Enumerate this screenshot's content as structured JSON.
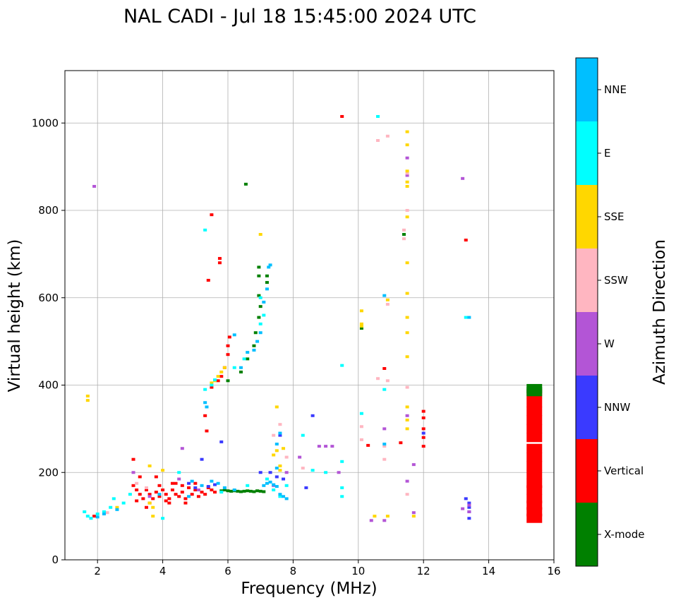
{
  "colors": {
    "X-mode": "#008000",
    "Vertical": "#ff0000",
    "NNW": "#3a3aff",
    "W": "#b355d6",
    "SSW": "#ffb6c1",
    "SSE": "#ffd700",
    "E": "#00ffff",
    "NNE": "#00bfff"
  },
  "chart_data": {
    "type": "scatter",
    "title": "NAL CADI - Jul 18 15:45:00 2024 UTC",
    "xlabel": "Frequency (MHz)",
    "ylabel": "Virtual height (km)",
    "xlim": [
      1,
      16
    ],
    "ylim": [
      0,
      1120
    ],
    "xticks": [
      2,
      4,
      6,
      8,
      10,
      12,
      14,
      16
    ],
    "xtick_labels": [
      "2",
      "4",
      "6",
      "8",
      "10",
      "12",
      "14",
      "16"
    ],
    "yticks": [
      0,
      200,
      400,
      600,
      800,
      1000
    ],
    "ytick_labels": [
      "0",
      "200",
      "400",
      "600",
      "800",
      "1000"
    ],
    "grid": true,
    "colorbar": {
      "label": "Azimuth Direction",
      "categories": [
        "X-mode",
        "Vertical",
        "NNW",
        "W",
        "SSW",
        "SSE",
        "E",
        "NNE"
      ]
    },
    "series": [
      {
        "name": "Vertical",
        "points": [
          [
            3.1,
            170
          ],
          [
            3.2,
            160
          ],
          [
            3.3,
            150
          ],
          [
            3.4,
            140
          ],
          [
            3.5,
            160
          ],
          [
            3.6,
            150
          ],
          [
            3.7,
            140
          ],
          [
            3.8,
            155
          ],
          [
            3.9,
            145
          ],
          [
            4.0,
            160
          ],
          [
            4.1,
            150
          ],
          [
            4.2,
            140
          ],
          [
            4.3,
            160
          ],
          [
            4.4,
            150
          ],
          [
            4.5,
            145
          ],
          [
            4.6,
            155
          ],
          [
            4.7,
            140
          ],
          [
            4.8,
            165
          ],
          [
            4.9,
            150
          ],
          [
            5.0,
            160
          ],
          [
            5.1,
            145
          ],
          [
            5.2,
            155
          ],
          [
            5.3,
            150
          ],
          [
            5.4,
            165
          ],
          [
            5.5,
            160
          ],
          [
            5.6,
            155
          ],
          [
            3.2,
            135
          ],
          [
            3.6,
            130
          ],
          [
            4.2,
            130
          ],
          [
            4.4,
            175
          ],
          [
            4.7,
            130
          ],
          [
            5.0,
            175
          ],
          [
            3.1,
            230
          ],
          [
            3.3,
            190
          ],
          [
            3.9,
            170
          ],
          [
            4.3,
            175
          ],
          [
            4.1,
            135
          ],
          [
            4.6,
            170
          ],
          [
            3.5,
            120
          ],
          [
            3.8,
            190
          ],
          [
            5.5,
            395
          ],
          [
            5.7,
            410
          ],
          [
            5.8,
            420
          ],
          [
            5.9,
            440
          ],
          [
            6.0,
            470
          ],
          [
            6.0,
            490
          ],
          [
            6.05,
            510
          ],
          [
            5.3,
            330
          ],
          [
            5.35,
            295
          ],
          [
            5.5,
            790
          ],
          [
            5.4,
            640
          ],
          [
            5.75,
            690
          ],
          [
            5.75,
            680
          ],
          [
            1.9,
            100
          ],
          [
            11.3,
            268
          ],
          [
            12.0,
            340
          ],
          [
            12.0,
            325
          ],
          [
            12.0,
            300
          ],
          [
            12.0,
            280
          ],
          [
            12.0,
            260
          ],
          [
            10.3,
            262
          ],
          [
            10.8,
            438
          ],
          [
            13.3,
            732
          ],
          [
            9.5,
            1015
          ]
        ]
      },
      {
        "name": "X-mode",
        "points": [
          [
            5.8,
            158
          ],
          [
            5.9,
            160
          ],
          [
            6.0,
            158
          ],
          [
            6.1,
            157
          ],
          [
            6.2,
            158
          ],
          [
            6.3,
            157
          ],
          [
            6.4,
            156
          ],
          [
            6.5,
            157
          ],
          [
            6.6,
            158
          ],
          [
            6.7,
            157
          ],
          [
            6.8,
            156
          ],
          [
            6.9,
            158
          ],
          [
            7.0,
            157
          ],
          [
            7.1,
            156
          ],
          [
            6.4,
            430
          ],
          [
            6.6,
            460
          ],
          [
            6.8,
            490
          ],
          [
            6.85,
            520
          ],
          [
            6.95,
            555
          ],
          [
            7.0,
            580
          ],
          [
            6.95,
            605
          ],
          [
            7.2,
            650
          ],
          [
            7.2,
            635
          ],
          [
            6.95,
            670
          ],
          [
            6.95,
            650
          ],
          [
            6.55,
            860
          ],
          [
            10.1,
            530
          ],
          [
            6.0,
            410
          ],
          [
            11.4,
            745
          ]
        ]
      },
      {
        "name": "NNW",
        "points": [
          [
            4.8,
            175
          ],
          [
            5.0,
            165
          ],
          [
            5.4,
            168
          ],
          [
            5.6,
            172
          ],
          [
            5.2,
            230
          ],
          [
            5.8,
            270
          ],
          [
            7.0,
            200
          ],
          [
            7.3,
            200
          ],
          [
            7.5,
            190
          ],
          [
            7.7,
            185
          ],
          [
            7.6,
            285
          ],
          [
            8.4,
            165
          ],
          [
            8.6,
            330
          ],
          [
            13.3,
            140
          ],
          [
            13.4,
            130
          ],
          [
            13.4,
            120
          ],
          [
            13.4,
            110
          ],
          [
            13.4,
            95
          ],
          [
            12.0,
            290
          ]
        ]
      },
      {
        "name": "W",
        "points": [
          [
            4.6,
            255
          ],
          [
            5.1,
            160
          ],
          [
            3.6,
            145
          ],
          [
            4.5,
            185
          ],
          [
            8.8,
            260
          ],
          [
            9.0,
            260
          ],
          [
            9.2,
            260
          ],
          [
            10.4,
            90
          ],
          [
            10.8,
            90
          ],
          [
            10.8,
            300
          ],
          [
            11.5,
            880
          ],
          [
            11.5,
            920
          ],
          [
            11.5,
            330
          ],
          [
            11.5,
            180
          ],
          [
            11.7,
            218
          ],
          [
            11.7,
            108
          ],
          [
            13.2,
            117
          ],
          [
            13.4,
            110
          ],
          [
            13.4,
            125
          ],
          [
            1.9,
            855
          ],
          [
            13.2,
            873
          ],
          [
            8.2,
            235
          ],
          [
            7.4,
            170
          ],
          [
            7.8,
            200
          ],
          [
            3.1,
            200
          ],
          [
            9.4,
            200
          ]
        ]
      },
      {
        "name": "SSW",
        "points": [
          [
            7.4,
            285
          ],
          [
            7.8,
            235
          ],
          [
            8.3,
            210
          ],
          [
            10.8,
            260
          ],
          [
            10.8,
            230
          ],
          [
            10.6,
            415
          ],
          [
            10.9,
            585
          ],
          [
            10.9,
            410
          ],
          [
            10.6,
            960
          ],
          [
            10.9,
            970
          ],
          [
            11.4,
            755
          ],
          [
            11.4,
            735
          ],
          [
            11.5,
            395
          ],
          [
            11.5,
            150
          ],
          [
            11.5,
            800
          ],
          [
            10.1,
            305
          ],
          [
            10.1,
            275
          ],
          [
            3.2,
            175
          ],
          [
            3.5,
            165
          ],
          [
            2.3,
            108
          ],
          [
            7.6,
            310
          ],
          [
            11.5,
            885
          ]
        ]
      },
      {
        "name": "SSE",
        "points": [
          [
            5.6,
            410
          ],
          [
            5.7,
            420
          ],
          [
            5.8,
            430
          ],
          [
            5.9,
            440
          ],
          [
            5.5,
            405
          ],
          [
            7.5,
            250
          ],
          [
            7.7,
            255
          ],
          [
            7.4,
            240
          ],
          [
            7.6,
            215
          ],
          [
            7.6,
            205
          ],
          [
            3.7,
            100
          ],
          [
            3.7,
            120
          ],
          [
            3.6,
            130
          ],
          [
            2.6,
            120
          ],
          [
            10.1,
            570
          ],
          [
            10.1,
            540
          ],
          [
            10.1,
            535
          ],
          [
            11.5,
            980
          ],
          [
            11.5,
            950
          ],
          [
            11.5,
            890
          ],
          [
            11.5,
            865
          ],
          [
            11.5,
            855
          ],
          [
            11.5,
            785
          ],
          [
            11.5,
            680
          ],
          [
            11.5,
            610
          ],
          [
            11.5,
            555
          ],
          [
            11.5,
            520
          ],
          [
            11.5,
            465
          ],
          [
            11.5,
            350
          ],
          [
            11.5,
            320
          ],
          [
            11.5,
            300
          ],
          [
            11.7,
            100
          ],
          [
            10.9,
            595
          ],
          [
            10.9,
            100
          ],
          [
            10.5,
            100
          ],
          [
            1.7,
            375
          ],
          [
            1.7,
            365
          ],
          [
            7.0,
            745
          ],
          [
            7.5,
            350
          ],
          [
            3.6,
            215
          ],
          [
            4.0,
            205
          ]
        ]
      },
      {
        "name": "E",
        "points": [
          [
            5.3,
            755
          ],
          [
            5.3,
            390
          ],
          [
            5.5,
            400
          ],
          [
            5.6,
            412
          ],
          [
            6.2,
            440
          ],
          [
            6.5,
            460
          ],
          [
            7.0,
            600
          ],
          [
            7.1,
            560
          ],
          [
            7.0,
            540
          ],
          [
            8.3,
            285
          ],
          [
            8.6,
            205
          ],
          [
            9.5,
            445
          ],
          [
            9.5,
            225
          ],
          [
            9.5,
            165
          ],
          [
            9.5,
            145
          ],
          [
            10.1,
            335
          ],
          [
            10.6,
            1015
          ],
          [
            10.8,
            390
          ],
          [
            13.3,
            555
          ],
          [
            1.6,
            110
          ],
          [
            1.7,
            100
          ],
          [
            1.8,
            95
          ],
          [
            2.0,
            105
          ],
          [
            2.2,
            110
          ],
          [
            2.4,
            120
          ],
          [
            2.5,
            140
          ],
          [
            2.8,
            130
          ],
          [
            3.0,
            150
          ],
          [
            4.0,
            95
          ],
          [
            4.5,
            200
          ],
          [
            5.8,
            155
          ],
          [
            7.2,
            185
          ],
          [
            7.4,
            160
          ],
          [
            7.6,
            145
          ],
          [
            7.8,
            170
          ],
          [
            9.0,
            200
          ],
          [
            6.6,
            170
          ]
        ]
      },
      {
        "name": "NNE",
        "points": [
          [
            5.3,
            360
          ],
          [
            5.35,
            350
          ],
          [
            6.2,
            515
          ],
          [
            6.4,
            440
          ],
          [
            6.6,
            475
          ],
          [
            6.8,
            480
          ],
          [
            6.9,
            500
          ],
          [
            7.0,
            520
          ],
          [
            7.1,
            590
          ],
          [
            7.2,
            620
          ],
          [
            7.25,
            670
          ],
          [
            7.3,
            675
          ],
          [
            7.1,
            170
          ],
          [
            7.2,
            175
          ],
          [
            7.3,
            178
          ],
          [
            7.4,
            172
          ],
          [
            7.5,
            168
          ],
          [
            7.6,
            150
          ],
          [
            7.7,
            145
          ],
          [
            7.8,
            140
          ],
          [
            5.5,
            180
          ],
          [
            5.7,
            175
          ],
          [
            5.9,
            165
          ],
          [
            6.2,
            160
          ],
          [
            4.9,
            180
          ],
          [
            5.2,
            170
          ],
          [
            10.8,
            605
          ],
          [
            13.4,
            555
          ],
          [
            10.8,
            265
          ],
          [
            7.5,
            265
          ],
          [
            7.6,
            290
          ],
          [
            7.5,
            210
          ],
          [
            3.9,
            150
          ],
          [
            4.8,
            145
          ],
          [
            2.6,
            115
          ],
          [
            2.2,
            105
          ],
          [
            2.0,
            98
          ]
        ]
      },
      {
        "name": "Vertical-column",
        "points": [
          [
            15.4,
            380
          ],
          [
            15.4,
            360
          ],
          [
            15.4,
            340
          ],
          [
            15.4,
            320
          ],
          [
            15.4,
            300
          ],
          [
            15.4,
            280
          ],
          [
            15.4,
            255
          ],
          [
            15.4,
            235
          ],
          [
            15.4,
            215
          ],
          [
            15.4,
            195
          ],
          [
            15.4,
            175
          ],
          [
            15.4,
            160
          ],
          [
            15.4,
            140
          ],
          [
            15.4,
            125
          ],
          [
            15.4,
            110
          ],
          [
            15.4,
            95
          ]
        ]
      },
      {
        "name": "X-mode-column",
        "points": [
          [
            15.4,
            392
          ],
          [
            15.4,
            385
          ]
        ]
      }
    ]
  }
}
